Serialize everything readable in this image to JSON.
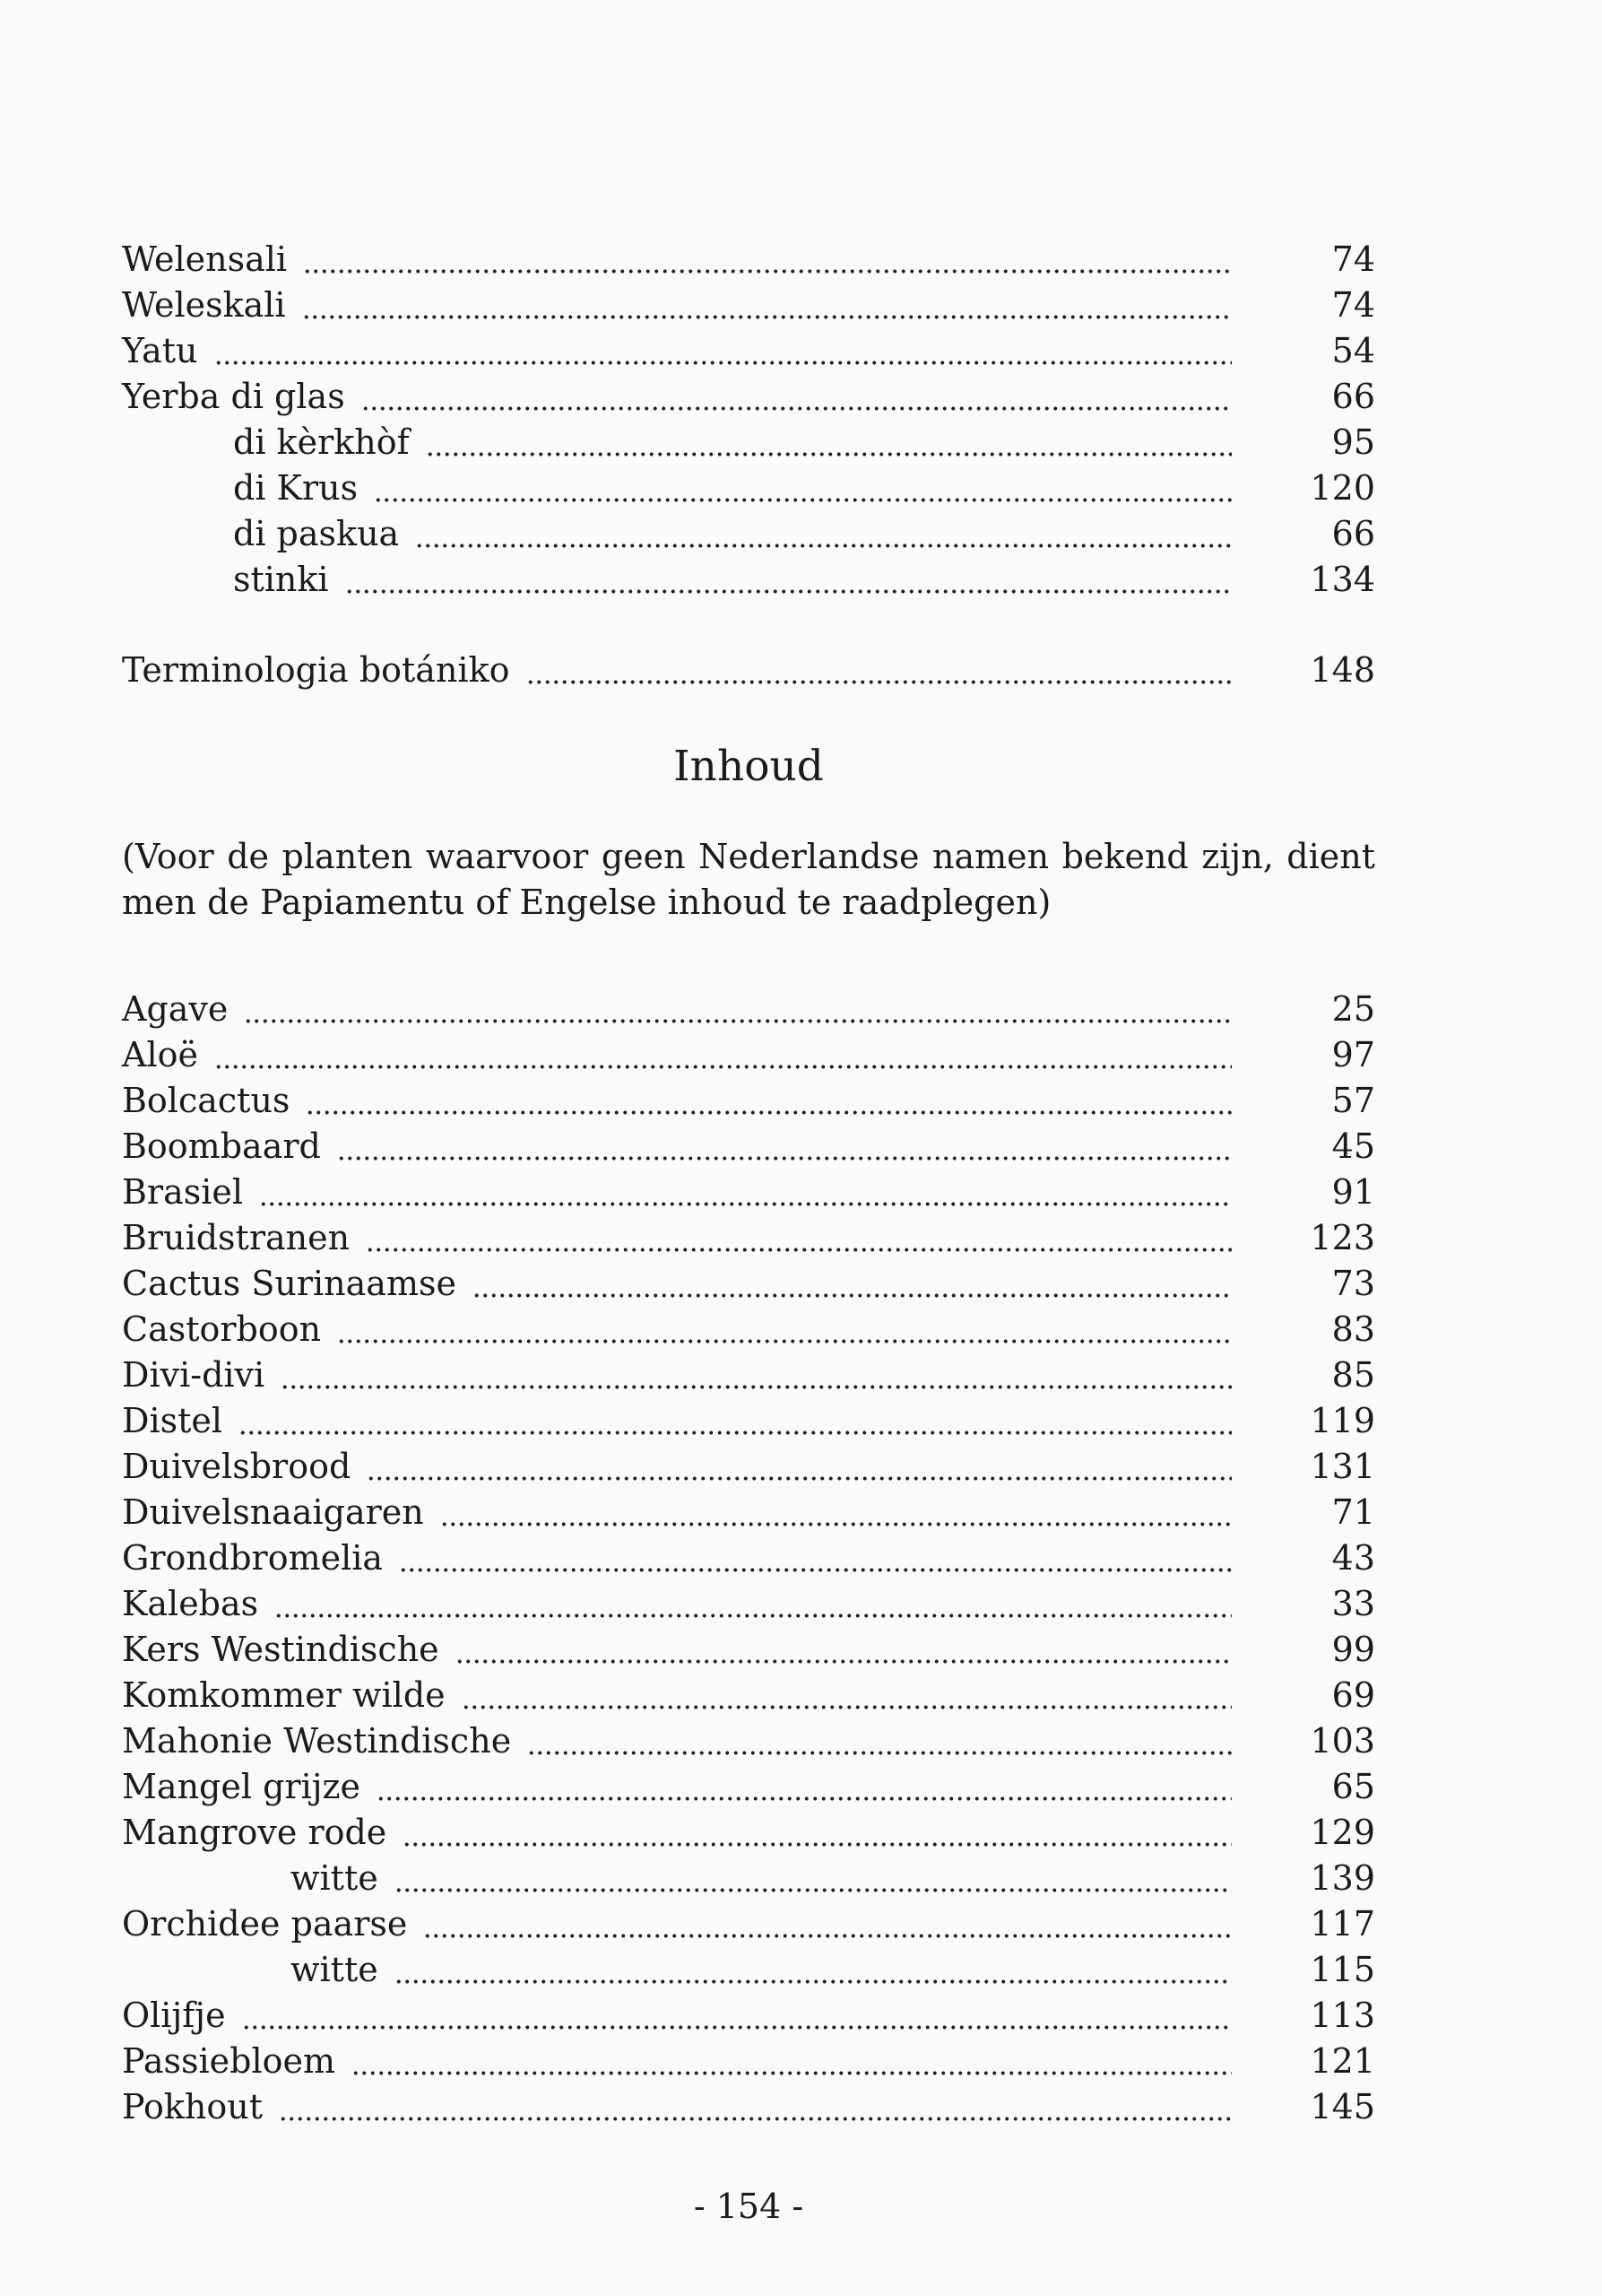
{
  "document": {
    "index_entries": [
      {
        "label": "Welensali",
        "page": "74",
        "indent": 0
      },
      {
        "label": "Weleskali",
        "page": "74",
        "indent": 0
      },
      {
        "label": "Yatu",
        "page": "54",
        "indent": 0
      },
      {
        "label": "Yerba di glas",
        "page": "66",
        "indent": 0
      },
      {
        "label": "di kèrkhòf",
        "page": "95",
        "indent": 1
      },
      {
        "label": "di Krus",
        "page": "120",
        "indent": 1
      },
      {
        "label": "di paskua",
        "page": "66",
        "indent": 1
      },
      {
        "label": "stinki",
        "page": "134",
        "indent": 1
      }
    ],
    "terminology_entry": {
      "label": "Terminologia botániko",
      "page": "148",
      "indent": 0
    },
    "heading": "Inhoud",
    "note_lines": [
      "(Voor de planten waarvoor geen Nederlandse namen bekend zijn, dient",
      "men de Papiamentu of Engelse inhoud te raadplegen)"
    ],
    "contents_entries": [
      {
        "label": "Agave",
        "page": "25",
        "indent": 0
      },
      {
        "label": "Aloë",
        "page": "97",
        "indent": 0
      },
      {
        "label": "Bolcactus",
        "page": "57",
        "indent": 0
      },
      {
        "label": "Boombaard",
        "page": "45",
        "indent": 0
      },
      {
        "label": "Brasiel",
        "page": "91",
        "indent": 0
      },
      {
        "label": "Bruidstranen",
        "page": "123",
        "indent": 0
      },
      {
        "label": "Cactus Surinaamse",
        "page": "73",
        "indent": 0
      },
      {
        "label": "Castorboon",
        "page": "83",
        "indent": 0
      },
      {
        "label": "Divi-divi",
        "page": "85",
        "indent": 0
      },
      {
        "label": "Distel",
        "page": "119",
        "indent": 0
      },
      {
        "label": "Duivelsbrood",
        "page": "131",
        "indent": 0
      },
      {
        "label": "Duivelsnaaigaren",
        "page": "71",
        "indent": 0
      },
      {
        "label": "Grondbromelia",
        "page": "43",
        "indent": 0
      },
      {
        "label": "Kalebas",
        "page": "33",
        "indent": 0
      },
      {
        "label": "Kers Westindische",
        "page": "99",
        "indent": 0
      },
      {
        "label": "Komkommer wilde",
        "page": "69",
        "indent": 0
      },
      {
        "label": "Mahonie Westindische",
        "page": "103",
        "indent": 0
      },
      {
        "label": "Mangel grijze",
        "page": "65",
        "indent": 0
      },
      {
        "label": "Mangrove rode",
        "page": "129",
        "indent": 0
      },
      {
        "label": "witte",
        "page": "139",
        "indent": 2
      },
      {
        "label": "Orchidee paarse",
        "page": "117",
        "indent": 0
      },
      {
        "label": "witte",
        "page": "115",
        "indent": 2
      },
      {
        "label": "Olijfje",
        "page": "113",
        "indent": 0
      },
      {
        "label": "Passiebloem",
        "page": "121",
        "indent": 0
      },
      {
        "label": "Pokhout",
        "page": "145",
        "indent": 0
      }
    ],
    "footer_page_number": "- 154 -"
  },
  "colors": {
    "background": "#fbfaf8",
    "text": "#1b1b1b"
  }
}
